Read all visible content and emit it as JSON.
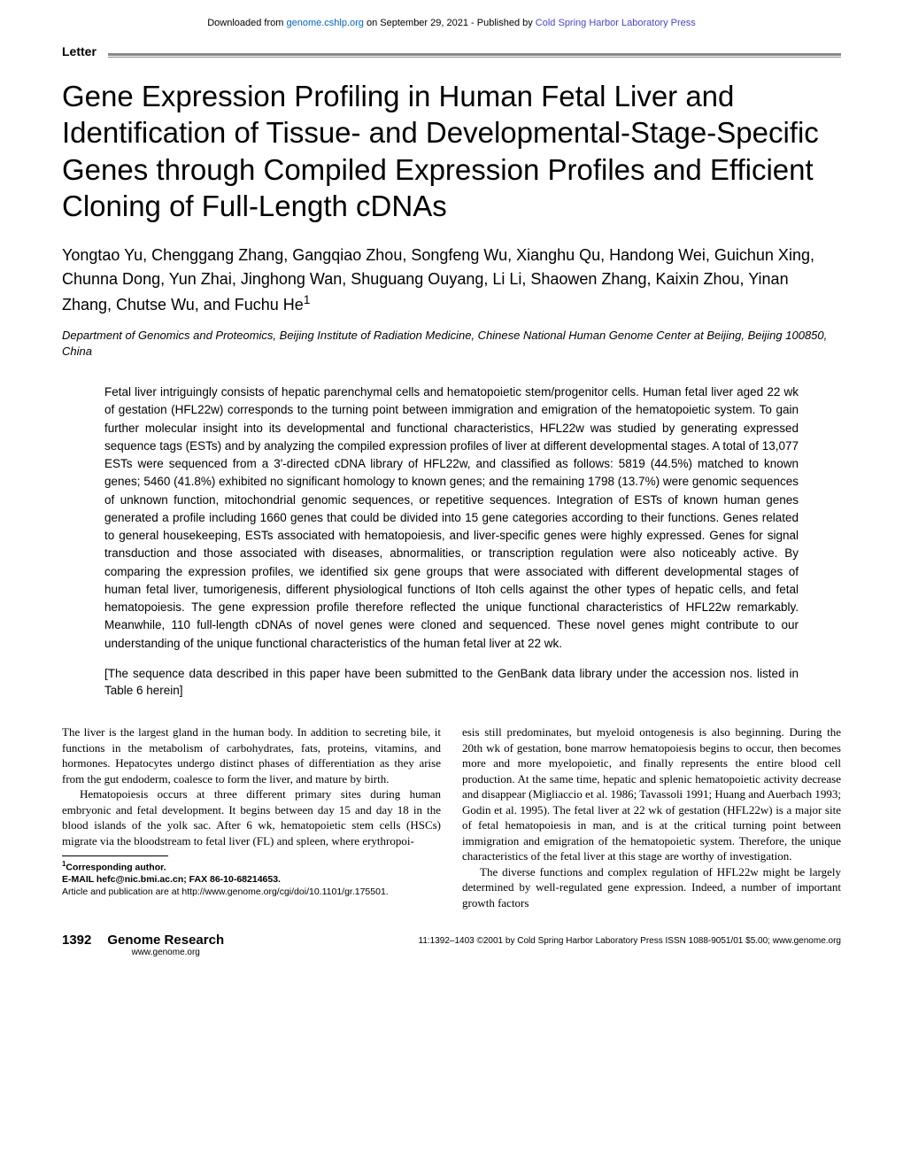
{
  "downloadBar": {
    "prefix": "Downloaded from ",
    "link1": "genome.cshlp.org",
    "middle": " on September 29, 2021 - Published by ",
    "link2": "Cold Spring Harbor Laboratory Press"
  },
  "sectionLabel": "Letter",
  "title": "Gene Expression Profiling in Human Fetal Liver and Identification of Tissue- and Developmental-Stage-Specific Genes through Compiled Expression Profiles and Efficient Cloning of Full-Length cDNAs",
  "authors": "Yongtao Yu, Chenggang Zhang, Gangqiao Zhou, Songfeng Wu, Xianghu Qu, Handong Wei, Guichun Xing, Chunna Dong, Yun Zhai, Jinghong Wan, Shuguang Ouyang, Li Li, Shaowen Zhang, Kaixin Zhou, Yinan Zhang, Chutse Wu, and Fuchu He",
  "authorSup": "1",
  "affiliation": "Department of Genomics and Proteomics, Beijing Institute of Radiation Medicine, Chinese National Human Genome Center at Beijing, Beijing 100850, China",
  "abstract": "Fetal liver intriguingly consists of hepatic parenchymal cells and hematopoietic stem/progenitor cells. Human fetal liver aged 22 wk of gestation (HFL22w) corresponds to the turning point between immigration and emigration of the hematopoietic system. To gain further molecular insight into its developmental and functional characteristics, HFL22w was studied by generating expressed sequence tags (ESTs) and by analyzing the compiled expression profiles of liver at different developmental stages. A total of 13,077 ESTs were sequenced from a 3'-directed cDNA library of HFL22w, and classified as follows: 5819 (44.5%) matched to known genes; 5460 (41.8%) exhibited no significant homology to known genes; and the remaining 1798 (13.7%) were genomic sequences of unknown function, mitochondrial genomic sequences, or repetitive sequences. Integration of ESTs of known human genes generated a profile including 1660 genes that could be divided into 15 gene categories according to their functions. Genes related to general housekeeping, ESTs associated with hematopoiesis, and liver-specific genes were highly expressed. Genes for signal transduction and those associated with diseases, abnormalities, or transcription regulation were also noticeably active. By comparing the expression profiles, we identified six gene groups that were associated with different developmental stages of human fetal liver, tumorigenesis, different physiological functions of Itoh cells against the other types of hepatic cells, and fetal hematopoiesis. The gene expression profile therefore reflected the unique functional characteristics of HFL22w remarkably. Meanwhile, 110 full-length cDNAs of novel genes were cloned and sequenced. These novel genes might contribute to our understanding of the unique functional characteristics of the human fetal liver at 22 wk.",
  "dataNote": "[The sequence data described in this paper have been submitted to the GenBank data library under the accession nos. listed in Table 6 herein]",
  "body": {
    "col1": {
      "p1": "The liver is the largest gland in the human body. In addition to secreting bile, it functions in the metabolism of carbohydrates, fats, proteins, vitamins, and hormones. Hepatocytes undergo distinct phases of differentiation as they arise from the gut endoderm, coalesce to form the liver, and mature by birth.",
      "p2": "Hematopoiesis occurs at three different primary sites during human embryonic and fetal development. It begins between day 15 and day 18 in the blood islands of the yolk sac. After 6 wk, hematopoietic stem cells (HSCs) migrate via the bloodstream to fetal liver (FL) and spleen, where erythropoi-"
    },
    "col2": {
      "p1": "esis still predominates, but myeloid ontogenesis is also beginning. During the 20th wk of gestation, bone marrow hematopoiesis begins to occur, then becomes more and more myelopoietic, and finally represents the entire blood cell production. At the same time, hepatic and splenic hematopoietic activity decrease and disappear (Migliaccio et al. 1986; Tavassoli 1991; Huang and Auerbach 1993; Godin et al. 1995). The fetal liver at 22 wk of gestation (HFL22w) is a major site of fetal hematopoiesis in man, and is at the critical turning point between immigration and emigration of the hematopoietic system. Therefore, the unique characteristics of the fetal liver at this stage are worthy of investigation.",
      "p2": "The diverse functions and complex regulation of HFL22w might be largely determined by well-regulated gene expression. Indeed, a number of important growth factors"
    }
  },
  "footnote": {
    "corr": "Corresponding author.",
    "email": "E-MAIL hefc@nic.bmi.ac.cn; FAX 86-10-68214653.",
    "article": "Article and publication are at http://www.genome.org/cgi/doi/10.1101/gr.175501."
  },
  "footer": {
    "pageNum": "1392",
    "pubName": "Genome Research",
    "pubUrl": "www.genome.org",
    "copyright": "11:1392–1403 ©2001 by Cold Spring Harbor Laboratory Press ISSN 1088-9051/01 $5.00; www.genome.org"
  }
}
